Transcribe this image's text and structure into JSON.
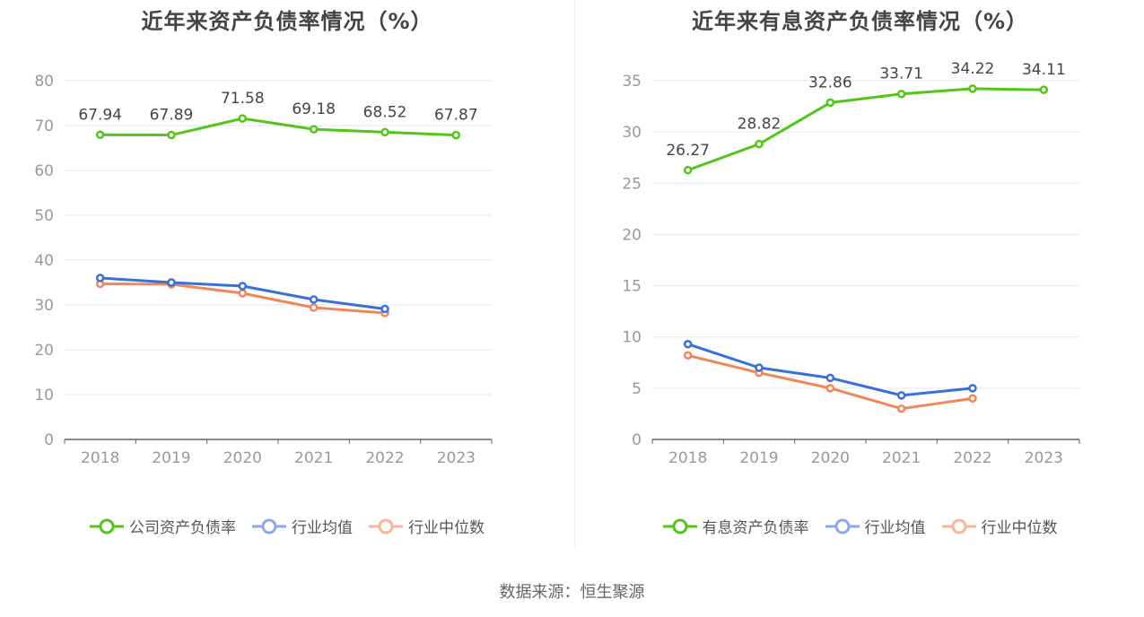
{
  "charts": [
    {
      "title": "近年来资产负债率情况（%）",
      "legend": [
        "公司资产负债率",
        "行业均值",
        "行业中位数"
      ]
    },
    {
      "title": "近年来有息资产负债率情况（%）",
      "legend": [
        "有息资产负债率",
        "行业均值",
        "行业中位数"
      ]
    }
  ],
  "source": "数据来源：恒生聚源",
  "colors": {
    "company": "#52c41a",
    "mean": "#3a6fd8",
    "median": "#f0875a",
    "grid": "#e3e6f0",
    "axis": "#666666"
  },
  "chart_data": [
    {
      "type": "line",
      "title": "近年来资产负债率情况（%）",
      "categories": [
        "2018",
        "2019",
        "2020",
        "2021",
        "2022",
        "2023"
      ],
      "ylim": [
        0,
        80
      ],
      "yticks": [
        0,
        10,
        20,
        30,
        40,
        50,
        60,
        70,
        80
      ],
      "grid": true,
      "legend_position": "bottom",
      "series": [
        {
          "name": "公司资产负债率",
          "values": [
            67.94,
            67.89,
            71.58,
            69.18,
            68.52,
            67.87
          ],
          "labels": [
            "67.94",
            "67.89",
            "71.58",
            "69.18",
            "68.52",
            "67.87"
          ]
        },
        {
          "name": "行业均值",
          "values": [
            36.0,
            35.0,
            34.2,
            31.2,
            29.1,
            null
          ]
        },
        {
          "name": "行业中位数",
          "values": [
            34.7,
            34.6,
            32.6,
            29.4,
            28.2,
            null
          ]
        }
      ]
    },
    {
      "type": "line",
      "title": "近年来有息资产负债率情况（%）",
      "categories": [
        "2018",
        "2019",
        "2020",
        "2021",
        "2022",
        "2023"
      ],
      "ylim": [
        0,
        35
      ],
      "yticks": [
        0,
        5,
        10,
        15,
        20,
        25,
        30,
        35
      ],
      "grid": true,
      "legend_position": "bottom",
      "series": [
        {
          "name": "有息资产负债率",
          "values": [
            26.27,
            28.82,
            32.86,
            33.71,
            34.22,
            34.11
          ],
          "labels": [
            "26.27",
            "28.82",
            "32.86",
            "33.71",
            "34.22",
            "34.11"
          ]
        },
        {
          "name": "行业均值",
          "values": [
            9.3,
            7.0,
            6.0,
            4.3,
            5.0,
            null
          ]
        },
        {
          "name": "行业中位数",
          "values": [
            8.2,
            6.5,
            5.0,
            3.0,
            4.0,
            null
          ]
        }
      ]
    }
  ]
}
